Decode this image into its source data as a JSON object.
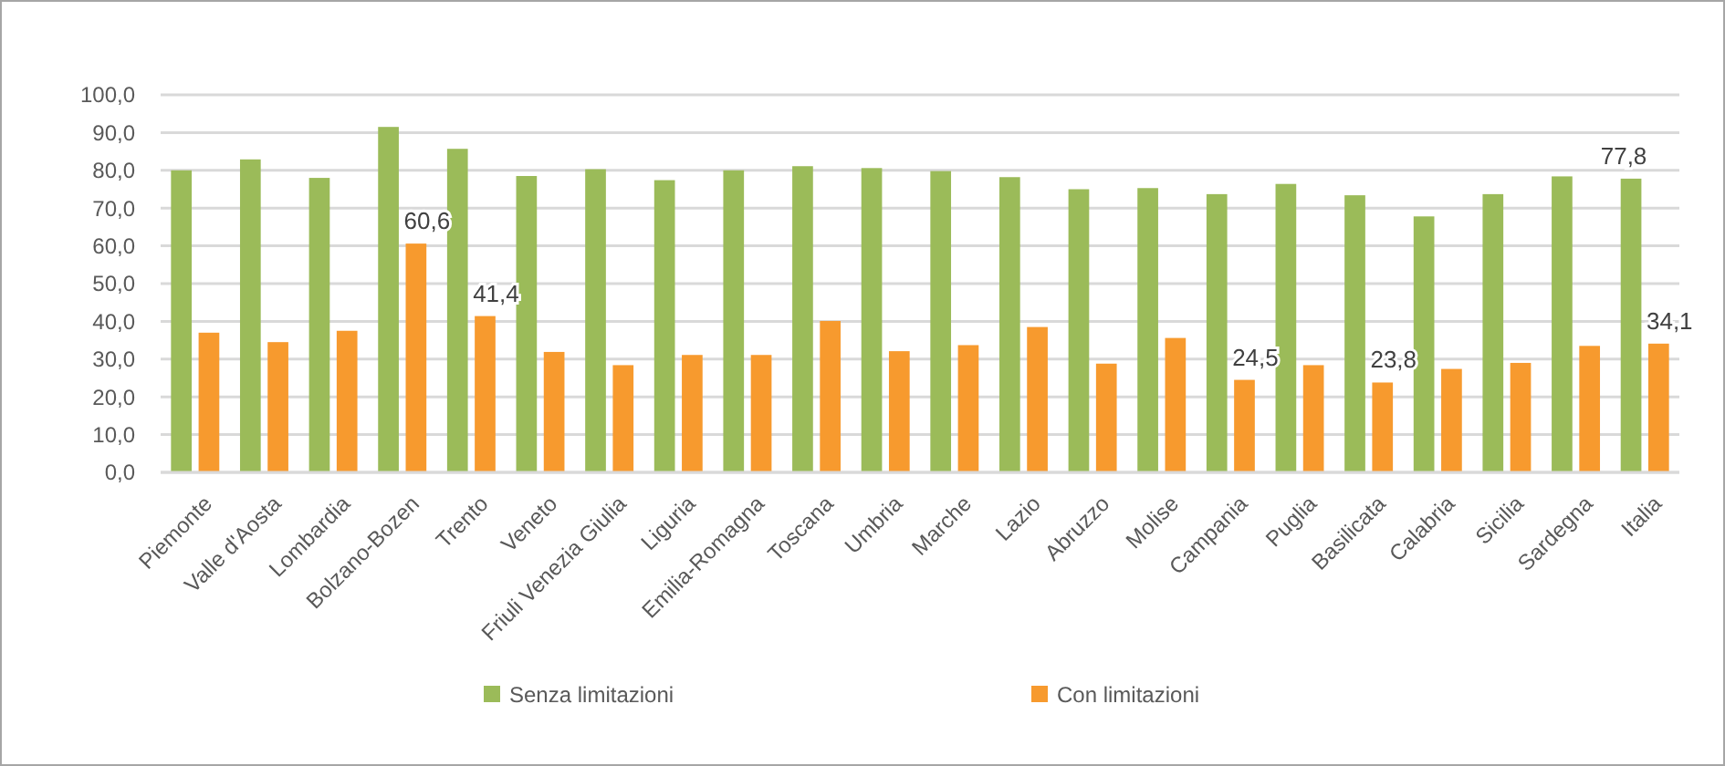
{
  "chart_data": {
    "type": "bar",
    "categories": [
      "Piemonte",
      "Valle d'Aosta",
      "Lombardia",
      "Bolzano-Bozen",
      "Trento",
      "Veneto",
      "Friuli Venezia Giulia",
      "Liguria",
      "Emilia-Romagna",
      "Toscana",
      "Umbria",
      "Marche",
      "Lazio",
      "Abruzzo",
      "Molise",
      "Campania",
      "Puglia",
      "Basilicata",
      "Calabria",
      "Sicilia",
      "Sardegna",
      "Italia"
    ],
    "series": [
      {
        "name": "Senza limitazioni",
        "color": "#9bbb59",
        "values": [
          80.0,
          82.9,
          78.0,
          91.5,
          85.7,
          78.5,
          80.3,
          77.4,
          80.0,
          81.1,
          80.6,
          79.8,
          78.2,
          75.0,
          75.3,
          73.7,
          76.4,
          73.4,
          67.8,
          73.7,
          78.4,
          77.8
        ],
        "value_labels": [
          null,
          null,
          null,
          null,
          null,
          null,
          null,
          null,
          null,
          null,
          null,
          null,
          null,
          null,
          null,
          null,
          null,
          null,
          null,
          null,
          null,
          "77,8"
        ]
      },
      {
        "name": "Con limitazioni",
        "color": "#f79a2e",
        "values": [
          37.0,
          34.5,
          37.5,
          60.6,
          41.4,
          31.9,
          28.4,
          31.1,
          31.1,
          40.1,
          32.1,
          33.7,
          38.5,
          28.8,
          35.6,
          24.5,
          28.4,
          23.8,
          27.4,
          29.0,
          33.5,
          34.1
        ],
        "value_labels": [
          null,
          null,
          null,
          "60,6",
          "41,4",
          null,
          null,
          null,
          null,
          null,
          null,
          null,
          null,
          null,
          null,
          "24,5",
          null,
          "23,8",
          null,
          null,
          null,
          "34,1"
        ]
      }
    ],
    "ylim": [
      0,
      100
    ],
    "yticks": [
      {
        "value": 0,
        "label": "0,0"
      },
      {
        "value": 10,
        "label": "10,0"
      },
      {
        "value": 20,
        "label": "20,0"
      },
      {
        "value": 30,
        "label": "30,0"
      },
      {
        "value": 40,
        "label": "40,0"
      },
      {
        "value": 50,
        "label": "50,0"
      },
      {
        "value": 60,
        "label": "60,0"
      },
      {
        "value": 70,
        "label": "70,0"
      },
      {
        "value": 80,
        "label": "80,0"
      },
      {
        "value": 90,
        "label": "90,0"
      },
      {
        "value": 100,
        "label": "100,0"
      }
    ],
    "grid": "y",
    "legend": "bottom"
  }
}
